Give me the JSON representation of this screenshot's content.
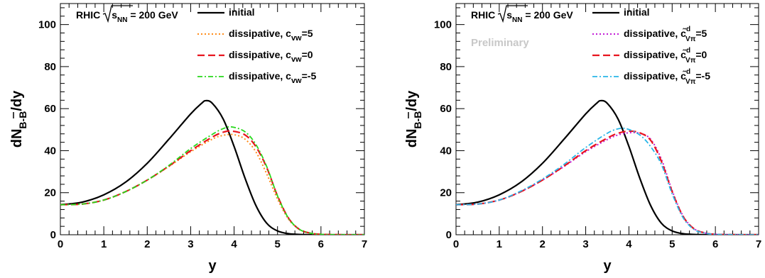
{
  "chart_data": [
    {
      "type": "line",
      "title": "",
      "xlabel": "y",
      "ylabel": "dN_{B-B̄}/dy",
      "xlim": [
        0,
        7
      ],
      "ylim": [
        0,
        110
      ],
      "x_ticks": [
        "0",
        "1",
        "2",
        "3",
        "4",
        "5",
        "6",
        "7"
      ],
      "y_ticks": [
        "0",
        "20",
        "40",
        "60",
        "80",
        "100"
      ],
      "annotation": "RHIC √s_NN = 200 GeV",
      "annotation_parts": {
        "prefix": "RHIC",
        "sub_base": "s",
        "sub": "NN",
        "suffix": " = 200 GeV"
      },
      "preliminary": "",
      "legend_position": "top-right",
      "series": [
        {
          "name": "initial",
          "legend_main": "initial",
          "legend_sub": "",
          "legend_sup": "",
          "legend_tail": "",
          "color": "#000000",
          "dash": "",
          "width": 2.2,
          "x": [
            0,
            0.5,
            1.0,
            1.5,
            2.0,
            2.5,
            3.0,
            3.25,
            3.35,
            3.5,
            3.75,
            4.0,
            4.25,
            4.5,
            4.75,
            5.0,
            5.25,
            5.5,
            6.0,
            7.0
          ],
          "y": [
            14.3,
            15.5,
            19,
            25,
            34,
            45.5,
            57.5,
            62.5,
            63.8,
            62.5,
            55,
            42,
            27,
            14,
            5.5,
            1.8,
            0.5,
            0.15,
            0,
            0
          ]
        },
        {
          "name": "dissipative, c_vw=5",
          "legend_main": "dissipative, c",
          "legend_sub": "vw",
          "legend_sup": "",
          "legend_tail": "=5",
          "color": "#ff8c1a",
          "dash": "2,3",
          "width": 2,
          "x": [
            0,
            0.5,
            1.0,
            1.5,
            2.0,
            2.5,
            3.0,
            3.5,
            3.75,
            4.0,
            4.25,
            4.5,
            4.75,
            5.0,
            5.25,
            5.5,
            5.75,
            6.0,
            6.5,
            7.0
          ],
          "y": [
            14.3,
            14.6,
            16.5,
            20.5,
            26,
            32.5,
            39.5,
            45.5,
            47.3,
            47.6,
            45.5,
            39.5,
            29,
            17,
            7.5,
            2.6,
            0.8,
            0.2,
            0,
            0
          ]
        },
        {
          "name": "dissipative, c_vw=0",
          "legend_main": "dissipative, c",
          "legend_sub": "vw",
          "legend_sup": "",
          "legend_tail": "=0",
          "color": "#e8141e",
          "dash": "10,5",
          "width": 2.2,
          "x": [
            0,
            0.5,
            1.0,
            1.5,
            2.0,
            2.5,
            3.0,
            3.5,
            3.75,
            3.95,
            4.25,
            4.5,
            4.75,
            5.0,
            5.25,
            5.5,
            5.75,
            6.0,
            6.5,
            7.0
          ],
          "y": [
            14.3,
            14.6,
            16.5,
            20.5,
            26,
            32.7,
            40,
            46.5,
            48.8,
            49.3,
            47.5,
            42,
            32,
            18.5,
            8,
            2.6,
            0.8,
            0.2,
            0,
            0
          ]
        },
        {
          "name": "dissipative, c_vw=-5",
          "legend_main": "dissipative, c",
          "legend_sub": "vw",
          "legend_sup": "",
          "legend_tail": "=-5",
          "color": "#27d81b",
          "dash": "7,3,2,3",
          "width": 1.8,
          "x": [
            0,
            0.5,
            1.0,
            1.5,
            2.0,
            2.5,
            3.0,
            3.5,
            3.75,
            3.95,
            4.25,
            4.5,
            4.75,
            5.0,
            5.25,
            5.5,
            5.75,
            6.0,
            6.5,
            7.0
          ],
          "y": [
            14.3,
            14.6,
            16.5,
            20.5,
            26,
            33,
            41,
            47.8,
            50.5,
            51.3,
            49,
            43,
            32.5,
            18.5,
            8,
            2.6,
            0.8,
            0.2,
            0,
            0
          ]
        }
      ]
    },
    {
      "type": "line",
      "title": "",
      "xlabel": "y",
      "ylabel": "dN_{B-B̄}/dy",
      "xlim": [
        0,
        7
      ],
      "ylim": [
        0,
        110
      ],
      "x_ticks": [
        "0",
        "1",
        "2",
        "3",
        "4",
        "5",
        "6",
        "7"
      ],
      "y_ticks": [
        "0",
        "20",
        "40",
        "60",
        "80",
        "100"
      ],
      "annotation": "RHIC √s_NN = 200 GeV",
      "annotation_parts": {
        "prefix": "RHIC",
        "sub_base": "s",
        "sub": "NN",
        "suffix": " = 200 GeV"
      },
      "preliminary": "Preliminary",
      "legend_position": "top-right",
      "series": [
        {
          "name": "initial",
          "legend_main": "initial",
          "legend_sub": "",
          "legend_sup": "",
          "legend_tail": "",
          "color": "#000000",
          "dash": "",
          "width": 2.2,
          "x": [
            0,
            0.5,
            1.0,
            1.5,
            2.0,
            2.5,
            3.0,
            3.25,
            3.35,
            3.5,
            3.75,
            4.0,
            4.25,
            4.5,
            4.75,
            5.0,
            5.25,
            5.5,
            6.0,
            7.0
          ],
          "y": [
            14.3,
            15.5,
            19,
            25,
            34,
            45.5,
            57.5,
            62.5,
            63.8,
            62.5,
            55,
            42,
            27,
            14,
            5.5,
            1.8,
            0.5,
            0.15,
            0,
            0
          ]
        },
        {
          "name": "dissipative, c̃_Vπ^d=5",
          "legend_main": "dissipative, c̃",
          "legend_sub": "Vπ",
          "legend_sup": "d",
          "legend_tail": "=5",
          "color": "#c21bd6",
          "dash": "2,3",
          "width": 2,
          "x": [
            0,
            0.5,
            1.0,
            1.5,
            2.0,
            2.5,
            3.0,
            3.5,
            3.75,
            4.0,
            4.25,
            4.5,
            4.75,
            5.0,
            5.25,
            5.5,
            5.75,
            6.0,
            6.5,
            7.0
          ],
          "y": [
            14.3,
            14.6,
            16.5,
            20.5,
            26,
            32.5,
            39.5,
            45.3,
            47.5,
            48.5,
            48.3,
            45.5,
            36,
            21,
            9,
            3,
            0.9,
            0.2,
            0,
            0
          ]
        },
        {
          "name": "dissipative, c̃_Vπ^d=0",
          "legend_main": "dissipative, c̃",
          "legend_sub": "Vπ",
          "legend_sup": "d",
          "legend_tail": "=0",
          "color": "#e8141e",
          "dash": "10,5",
          "width": 2.2,
          "x": [
            0,
            0.5,
            1.0,
            1.5,
            2.0,
            2.5,
            3.0,
            3.5,
            3.75,
            4.0,
            4.25,
            4.5,
            4.75,
            5.0,
            5.25,
            5.5,
            5.75,
            6.0,
            6.5,
            7.0
          ],
          "y": [
            14.3,
            14.6,
            16.5,
            20.5,
            26,
            32.7,
            40,
            46,
            48.3,
            49.3,
            48.5,
            45,
            35,
            20.5,
            8.8,
            2.9,
            0.9,
            0.2,
            0,
            0
          ]
        },
        {
          "name": "dissipative, c̃_Vπ^d=-5",
          "legend_main": "dissipative, c̃",
          "legend_sub": "Vπ",
          "legend_sup": "d",
          "legend_tail": "=-5",
          "color": "#29b6e8",
          "dash": "7,3,2,3",
          "width": 1.8,
          "x": [
            0,
            0.5,
            1.0,
            1.5,
            2.0,
            2.5,
            3.0,
            3.5,
            3.75,
            3.95,
            4.25,
            4.5,
            4.75,
            5.0,
            5.25,
            5.5,
            5.75,
            6.0,
            6.5,
            7.0
          ],
          "y": [
            14.3,
            14.6,
            16.5,
            20.8,
            26.5,
            33.5,
            41.5,
            48.3,
            50.4,
            50.4,
            47.5,
            42,
            33.5,
            19.5,
            8.2,
            2.6,
            0.8,
            0.2,
            0,
            0
          ]
        }
      ]
    }
  ]
}
